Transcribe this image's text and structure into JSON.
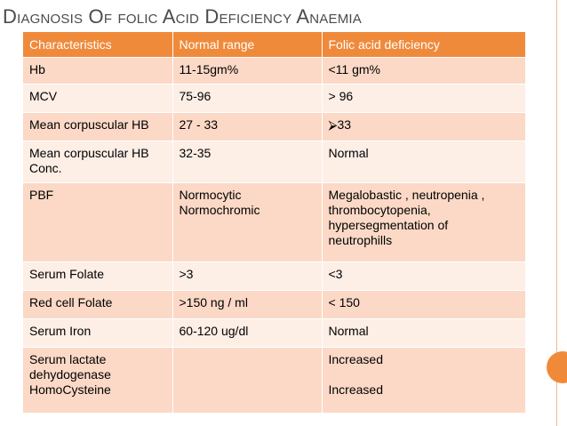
{
  "title": "Diagnosis Of folic Acid Deficiency Anaemia",
  "table": {
    "headers": [
      "Characteristics",
      "Normal range",
      "Folic acid deficiency"
    ],
    "rows": [
      [
        "Hb",
        "11-15gm%",
        "<11 gm%"
      ],
      [
        "MCV",
        "75-96",
        "> 96"
      ],
      [
        "Mean corpuscular HB",
        " 27 - 33",
        "⮚33"
      ],
      [
        "Mean corpuscular HB\nConc.",
        "32-35",
        "Normal"
      ],
      [
        "PBF",
        "Normocytic\nNormochromic",
        "Megalobastic , neutropenia ,\nthrombocytopenia,\nhypersegmentation of\nneutrophills"
      ],
      [
        "Serum Folate",
        ">3",
        "<3"
      ],
      [
        "Red cell Folate",
        ">150 ng / ml",
        "< 150"
      ],
      [
        "Serum Iron",
        "60-120 ug/dl",
        "Normal"
      ],
      [
        "Serum lactate\ndehydogenase\nHomoCysteine",
        "",
        "Increased\n\nIncreased"
      ]
    ]
  },
  "colors": {
    "header_bg": "#f08a3b",
    "row_dark": "#fbd9c6",
    "row_light": "#fdeee6",
    "title_text": "#4b4b4b",
    "accent_circle": "#f08a3b"
  }
}
